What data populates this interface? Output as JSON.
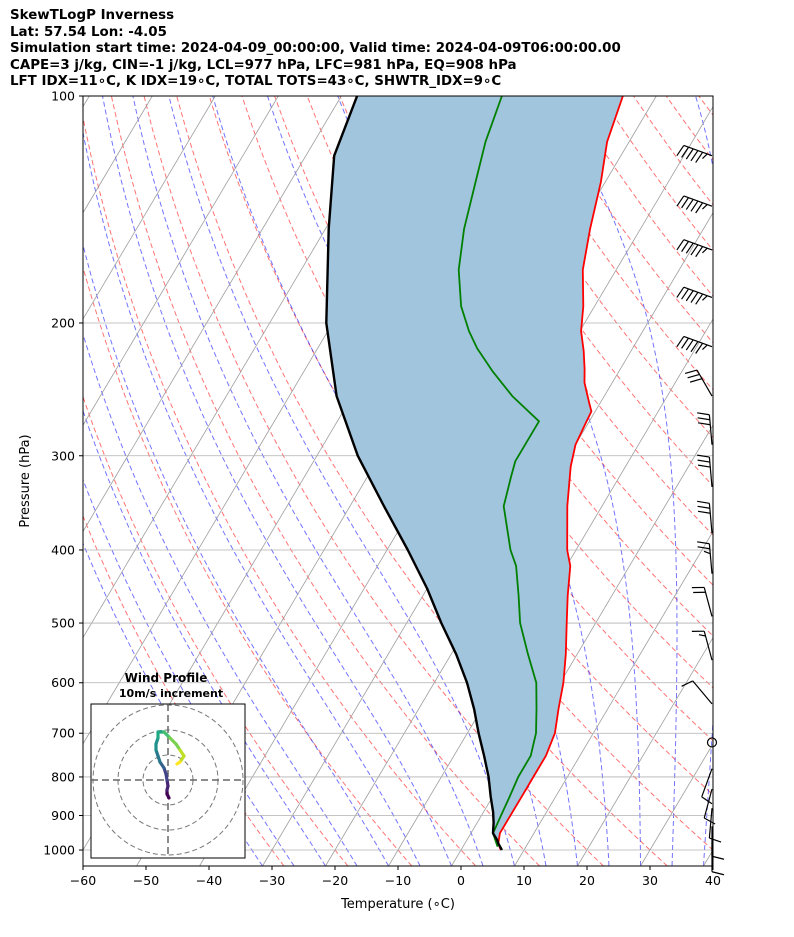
{
  "header": {
    "lines": [
      "SkewTLogP Inverness",
      "Lat: 57.54   Lon: -4.05",
      "Simulation start time: 2024-04-09_00:00:00, Valid time: 2024-04-09T06:00:00.00",
      "CAPE=3 j/kg, CIN=-1 j/kg, LCL=977 hPa, LFC=981 hPa, EQ=908 hPa",
      "LFT IDX=11∘C, K IDX=19∘C, TOTAL TOTS=43∘C, SHWTR_IDX=9∘C"
    ]
  },
  "chart_data": {
    "type": "line",
    "title": "SkewTLogP Inverness",
    "xlabel": "Temperature (∘C)",
    "ylabel": "Pressure (hPa)",
    "xlim": [
      -60,
      40
    ],
    "ylim": [
      1050,
      100
    ],
    "y_scale": "log",
    "x_ticks": [
      "−60",
      "−50",
      "−40",
      "−30",
      "−20",
      "−10",
      "0",
      "10",
      "20",
      "30",
      "40"
    ],
    "y_ticks": [
      100,
      200,
      300,
      400,
      500,
      600,
      700,
      800,
      900,
      1000
    ],
    "grid": true,
    "skew_degrees_per_decade": 71,
    "series": [
      {
        "kind": "temperature",
        "color": "#ff0000",
        "points": [
          [
            6.3,
            1000
          ],
          [
            5.3,
            980
          ],
          [
            4.6,
            950
          ],
          [
            4.6,
            900
          ],
          [
            4.6,
            850
          ],
          [
            4.6,
            800
          ],
          [
            4.6,
            750
          ],
          [
            3.9,
            700
          ],
          [
            2.2,
            650
          ],
          [
            0.5,
            600
          ],
          [
            -1.8,
            550
          ],
          [
            -4.6,
            500
          ],
          [
            -7.0,
            460
          ],
          [
            -9.4,
            420
          ],
          [
            -11.4,
            400
          ],
          [
            -15.5,
            350
          ],
          [
            -18.7,
            310
          ],
          [
            -20.0,
            290
          ],
          [
            -20.4,
            272
          ],
          [
            -20.6,
            262
          ],
          [
            -21.8,
            255
          ],
          [
            -24.4,
            240
          ],
          [
            -25.7,
            230
          ],
          [
            -27.5,
            218
          ],
          [
            -29.8,
            205
          ],
          [
            -31.8,
            190
          ],
          [
            -35.3,
            170
          ],
          [
            -38.0,
            150
          ],
          [
            -40.7,
            130
          ],
          [
            -43.5,
            115
          ],
          [
            -45.3,
            100
          ]
        ]
      },
      {
        "kind": "dewpoint",
        "color": "#008000",
        "points": [
          [
            5.5,
            990
          ],
          [
            4.5,
            970
          ],
          [
            3.5,
            950
          ],
          [
            3.1,
            900
          ],
          [
            2.7,
            850
          ],
          [
            2.2,
            800
          ],
          [
            2.2,
            750
          ],
          [
            0.9,
            700
          ],
          [
            -1.3,
            650
          ],
          [
            -3.8,
            600
          ],
          [
            -7.8,
            550
          ],
          [
            -12.0,
            500
          ],
          [
            -14.8,
            460
          ],
          [
            -18.0,
            420
          ],
          [
            -20.4,
            400
          ],
          [
            -25.6,
            350
          ],
          [
            -27.2,
            320
          ],
          [
            -28.0,
            305
          ],
          [
            -28.0,
            290
          ],
          [
            -28.0,
            270
          ],
          [
            -34.6,
            250
          ],
          [
            -40.0,
            232
          ],
          [
            -44.7,
            216
          ],
          [
            -47.6,
            205
          ],
          [
            -51.2,
            190
          ],
          [
            -55.0,
            170
          ],
          [
            -58.0,
            150
          ],
          [
            -60.6,
            130
          ],
          [
            -62.8,
            115
          ],
          [
            -64.5,
            100
          ]
        ]
      },
      {
        "kind": "parcel",
        "color": "#000000",
        "points": [
          [
            6.5,
            1000
          ],
          [
            5.3,
            980
          ],
          [
            4.8,
            970
          ],
          [
            3.5,
            950
          ],
          [
            2.6,
            920
          ],
          [
            1.5,
            890
          ],
          [
            -0.3,
            850
          ],
          [
            -2.5,
            800
          ],
          [
            -5.2,
            750
          ],
          [
            -8.2,
            700
          ],
          [
            -11.2,
            650
          ],
          [
            -14.8,
            600
          ],
          [
            -19.2,
            550
          ],
          [
            -24.5,
            500
          ],
          [
            -30.0,
            450
          ],
          [
            -36.7,
            400
          ],
          [
            -44.6,
            350
          ],
          [
            -53.5,
            300
          ],
          [
            -62.5,
            250
          ],
          [
            -71.0,
            200
          ],
          [
            -79.5,
            150
          ],
          [
            -85.5,
            120
          ],
          [
            -87.5,
            100
          ]
        ]
      }
    ],
    "cape_shading_color": "#a2c5de",
    "barbs": [
      {
        "p": 120,
        "speed_kt": 55,
        "dir": 290
      },
      {
        "p": 140,
        "speed_kt": 55,
        "dir": 290
      },
      {
        "p": 160,
        "speed_kt": 55,
        "dir": 290
      },
      {
        "p": 185,
        "speed_kt": 55,
        "dir": 290
      },
      {
        "p": 215,
        "speed_kt": 55,
        "dir": 290
      },
      {
        "p": 250,
        "speed_kt": 30,
        "dir": 330
      },
      {
        "p": 290,
        "speed_kt": 30,
        "dir": 355
      },
      {
        "p": 330,
        "speed_kt": 30,
        "dir": 355
      },
      {
        "p": 380,
        "speed_kt": 30,
        "dir": 355
      },
      {
        "p": 430,
        "speed_kt": 25,
        "dir": 355
      },
      {
        "p": 490,
        "speed_kt": 20,
        "dir": 345
      },
      {
        "p": 560,
        "speed_kt": 15,
        "dir": 345
      },
      {
        "p": 640,
        "speed_kt": 10,
        "dir": 320
      },
      {
        "p": 720,
        "speed_kt": 0,
        "dir": 0
      },
      {
        "p": 780,
        "speed_kt": 10,
        "dir": 200
      },
      {
        "p": 830,
        "speed_kt": 10,
        "dir": 195
      },
      {
        "p": 880,
        "speed_kt": 10,
        "dir": 185
      },
      {
        "p": 930,
        "speed_kt": 10,
        "dir": 180
      },
      {
        "p": 975,
        "speed_kt": 10,
        "dir": 180
      }
    ],
    "hodograph": {
      "title": "Wind Profile",
      "subtitle": "10m/s increment",
      "ring_count": 3,
      "points": [
        [
          0.1,
          -1.8
        ],
        [
          -0.1,
          -1.4
        ],
        [
          -0.1,
          -1.0
        ],
        [
          0.0,
          -0.6
        ],
        [
          -0.1,
          0.0
        ],
        [
          -0.2,
          0.6
        ],
        [
          -0.4,
          1.2
        ],
        [
          -0.8,
          1.8
        ],
        [
          -1.0,
          2.4
        ],
        [
          -1.2,
          3.0
        ],
        [
          -1.2,
          3.6
        ],
        [
          -1.0,
          4.2
        ],
        [
          -1.0,
          4.8
        ],
        [
          -0.4,
          4.8
        ],
        [
          0.2,
          4.2
        ],
        [
          0.8,
          3.6
        ],
        [
          1.2,
          3.0
        ],
        [
          1.6,
          2.4
        ],
        [
          1.2,
          1.8
        ],
        [
          0.9,
          1.6
        ]
      ]
    }
  }
}
